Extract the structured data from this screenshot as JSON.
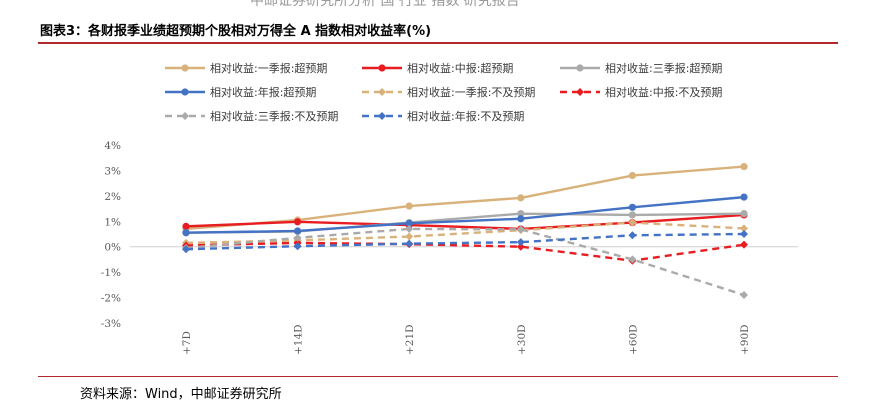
{
  "header_fragment": "中邮证券研究所分析 国 行业 指数 研究报告",
  "title": "图表3：各财报季业绩超预期个股相对万得全 A 指数相对收益率(%)",
  "source": "资料来源：Wind，中邮证券研究所",
  "chart_data": {
    "type": "line",
    "title": "",
    "xlabel": "",
    "ylabel": "",
    "categories": [
      "+7D",
      "+14D",
      "+21D",
      "+30D",
      "+60D",
      "+90D"
    ],
    "ylim": [
      -3,
      4
    ],
    "yticks": [
      "4%",
      "3%",
      "2%",
      "1%",
      "0%",
      "-1%",
      "-2%",
      "-3%"
    ],
    "grid": false,
    "legend": "top",
    "series": [
      {
        "name": "相对收益:一季报:超预期",
        "color": "#d8b27a",
        "dash": false,
        "values": [
          0.7,
          1.05,
          1.6,
          1.92,
          2.8,
          3.15
        ]
      },
      {
        "name": "相对收益:中报:超预期",
        "color": "#e81d22",
        "dash": false,
        "values": [
          0.8,
          0.98,
          0.85,
          0.7,
          0.95,
          1.25
        ]
      },
      {
        "name": "相对收益:三季报:超预期",
        "color": "#aaaaaa",
        "dash": false,
        "values": [
          0.55,
          0.6,
          0.95,
          1.3,
          1.25,
          1.3
        ]
      },
      {
        "name": "相对收益:年报:超预期",
        "color": "#4472c4",
        "dash": false,
        "values": [
          0.55,
          0.62,
          0.92,
          1.1,
          1.55,
          1.95
        ]
      },
      {
        "name": "相对收益:一季报:不及预期",
        "color": "#d8b27a",
        "dash": true,
        "values": [
          0.15,
          0.25,
          0.4,
          0.65,
          0.95,
          0.72
        ]
      },
      {
        "name": "相对收益:中报:不及预期",
        "color": "#e81d22",
        "dash": true,
        "values": [
          0.05,
          0.15,
          0.1,
          0.0,
          -0.55,
          0.08
        ]
      },
      {
        "name": "相对收益:三季报:不及预期",
        "color": "#aaaaaa",
        "dash": true,
        "values": [
          -0.05,
          0.35,
          0.7,
          0.68,
          -0.5,
          -1.9
        ]
      },
      {
        "name": "相对收益:年报:不及预期",
        "color": "#4472c4",
        "dash": true,
        "values": [
          -0.1,
          0.02,
          0.12,
          0.18,
          0.45,
          0.5
        ]
      }
    ]
  }
}
